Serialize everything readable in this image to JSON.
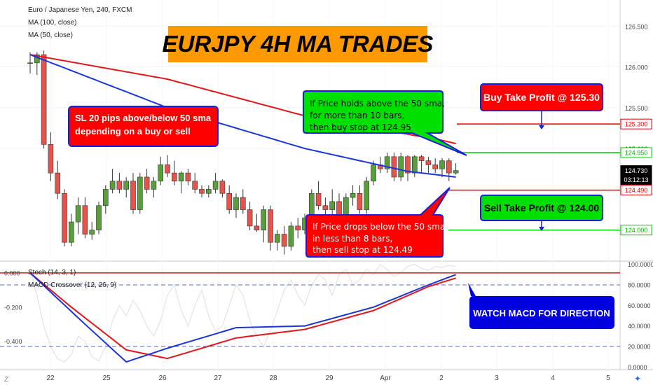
{
  "header": {
    "symbol_line": "Euro / Japanese Yen, 240, FXCM",
    "ma100_label": "MA (100, close)",
    "ma50_label": "MA (50, close)"
  },
  "banner": {
    "text": "EURJPY 4H MA TRADES",
    "bg": "#ff9900",
    "fg": "#000000"
  },
  "callouts": {
    "sl_note": [
      "SL 20 pips above/below 50 sma",
      "depending on a buy or sell"
    ],
    "buy_note": [
      "If Price holds above the 50 sma,",
      "for more than 10 bars,",
      "then buy stop at 124.95"
    ],
    "sell_note": [
      "If Price drops below the 50 sma,",
      "in less than 8 bars,",
      "then sell stop at 124.49"
    ],
    "buy_tp": "Buy Take Profit @ 125.30",
    "sell_tp": "Sell Take Profit @ 124.00",
    "watch_macd": "WATCH MACD FOR DIRECTION"
  },
  "price_axis": {
    "ticks": [
      "126.500",
      "126.000",
      "125.500",
      "125.000"
    ],
    "markers": [
      {
        "label": "125.300",
        "value": 125.3,
        "bg": "#ffffff",
        "fg": "#e50000",
        "border": "#e50000"
      },
      {
        "label": "124.950",
        "value": 124.95,
        "bg": "#ffffff",
        "fg": "#00b000",
        "border": "#00cc00"
      },
      {
        "label": "124.730",
        "value": 124.73,
        "bg": "#000000",
        "fg": "#ffffff",
        "border": "#000000"
      },
      {
        "label": "03:12:13",
        "value": 124.62,
        "bg": "#000000",
        "fg": "#ffffff",
        "border": "#000000"
      },
      {
        "label": "124.490",
        "value": 124.49,
        "bg": "#ffffff",
        "fg": "#e50000",
        "border": "#e50000"
      },
      {
        "label": "124.000",
        "value": 124.0,
        "bg": "#ffffff",
        "fg": "#00b000",
        "border": "#00cc00"
      }
    ]
  },
  "indicator": {
    "stoch_label": "Stoch (14, 3, 1)",
    "macd_label": "MACD Crossover (12, 26, 9)",
    "left_ticks": [
      "0.000",
      "-0.200",
      "-0.400"
    ],
    "right_ticks": [
      "100.0000",
      "80.0000",
      "60.0000",
      "40.0000",
      "20.0000",
      "0.0000"
    ]
  },
  "x_axis": {
    "labels": [
      "22",
      "25",
      "26",
      "27",
      "28",
      "29",
      "Apr",
      "2",
      "3",
      "4",
      "5"
    ]
  },
  "colors": {
    "up": "#5a9e3c",
    "down": "#e5534b",
    "ma100": "#e0161b",
    "ma50": "#1a36d6",
    "buy_line": "#00cc00",
    "sell_line": "#e50000",
    "banner_bg": "#ff9900",
    "callout_red": "#ff0000",
    "callout_green": "#00e000",
    "callout_blue": "#0000e0"
  },
  "chart_data": {
    "type": "candlestick",
    "y_range": [
      123.62,
      126.82
    ],
    "x_dates": [
      "22",
      "25",
      "26",
      "27",
      "28",
      "29",
      "Apr",
      "2",
      "3",
      "4",
      "5"
    ],
    "candles": [
      [
        126.05,
        126.18,
        125.92,
        126.05
      ],
      [
        126.05,
        126.18,
        125.9,
        126.15
      ],
      [
        126.15,
        126.2,
        125.0,
        125.05
      ],
      [
        125.05,
        125.2,
        124.6,
        124.7
      ],
      [
        124.7,
        124.85,
        124.38,
        124.45
      ],
      [
        124.45,
        124.5,
        123.8,
        123.85
      ],
      [
        123.85,
        124.2,
        123.8,
        124.1
      ],
      [
        124.1,
        124.4,
        123.95,
        124.3
      ],
      [
        124.3,
        124.4,
        123.9,
        123.95
      ],
      [
        123.95,
        124.1,
        123.88,
        124.0
      ],
      [
        124.0,
        124.35,
        123.95,
        124.3
      ],
      [
        124.3,
        124.55,
        124.2,
        124.5
      ],
      [
        124.5,
        124.75,
        124.45,
        124.6
      ],
      [
        124.6,
        124.7,
        124.45,
        124.5
      ],
      [
        124.5,
        124.65,
        124.4,
        124.6
      ],
      [
        124.6,
        124.7,
        124.2,
        124.25
      ],
      [
        124.25,
        124.7,
        124.2,
        124.65
      ],
      [
        124.65,
        124.75,
        124.45,
        124.5
      ],
      [
        124.5,
        124.65,
        124.4,
        124.6
      ],
      [
        124.6,
        124.9,
        124.55,
        124.8
      ],
      [
        124.8,
        124.92,
        124.65,
        124.7
      ],
      [
        124.7,
        124.85,
        124.55,
        124.6
      ],
      [
        124.6,
        124.72,
        124.45,
        124.7
      ],
      [
        124.7,
        124.75,
        124.55,
        124.6
      ],
      [
        124.6,
        124.7,
        124.45,
        124.5
      ],
      [
        124.5,
        124.55,
        124.4,
        124.45
      ],
      [
        124.45,
        124.55,
        124.4,
        124.5
      ],
      [
        124.5,
        124.7,
        124.45,
        124.6
      ],
      [
        124.6,
        124.62,
        124.4,
        124.45
      ],
      [
        124.45,
        124.55,
        124.2,
        124.25
      ],
      [
        124.25,
        124.45,
        124.15,
        124.4
      ],
      [
        124.4,
        124.5,
        124.2,
        124.25
      ],
      [
        124.25,
        124.35,
        124.0,
        124.05
      ],
      [
        124.05,
        124.2,
        123.98,
        124.0
      ],
      [
        124.0,
        124.3,
        123.85,
        124.25
      ],
      [
        124.25,
        124.3,
        123.75,
        123.85
      ],
      [
        123.85,
        124.0,
        123.75,
        123.95
      ],
      [
        123.95,
        124.05,
        123.7,
        123.8
      ],
      [
        123.8,
        124.1,
        123.75,
        124.05
      ],
      [
        124.05,
        124.15,
        123.9,
        124.0
      ],
      [
        124.0,
        124.2,
        123.95,
        124.15
      ],
      [
        124.15,
        124.5,
        124.1,
        124.45
      ],
      [
        124.45,
        124.6,
        124.25,
        124.3
      ],
      [
        124.3,
        124.4,
        124.15,
        124.25
      ],
      [
        124.25,
        124.5,
        124.1,
        124.35
      ],
      [
        124.35,
        124.45,
        124.1,
        124.15
      ],
      [
        124.15,
        124.45,
        124.1,
        124.4
      ],
      [
        124.4,
        124.55,
        124.3,
        124.45
      ],
      [
        124.45,
        124.55,
        124.2,
        124.25
      ],
      [
        124.25,
        124.65,
        124.2,
        124.6
      ],
      [
        124.6,
        124.85,
        124.55,
        124.8
      ],
      [
        124.8,
        124.9,
        124.7,
        124.75
      ],
      [
        124.75,
        124.95,
        124.7,
        124.9
      ],
      [
        124.9,
        124.95,
        124.6,
        124.65
      ],
      [
        124.65,
        124.95,
        124.6,
        124.9
      ],
      [
        124.9,
        124.92,
        124.6,
        124.7
      ],
      [
        124.7,
        124.92,
        124.65,
        124.9
      ],
      [
        124.9,
        124.92,
        124.7,
        124.85
      ],
      [
        124.85,
        124.9,
        124.7,
        124.8
      ],
      [
        124.8,
        124.88,
        124.7,
        124.75
      ],
      [
        124.75,
        124.88,
        124.65,
        124.85
      ],
      [
        124.85,
        124.88,
        124.6,
        124.7
      ],
      [
        124.7,
        124.82,
        124.68,
        124.73
      ]
    ],
    "ma100": [
      [
        0,
        126.15
      ],
      [
        20,
        125.85
      ],
      [
        40,
        125.4
      ],
      [
        60,
        125.1
      ],
      [
        62,
        125.06
      ]
    ],
    "ma50": [
      [
        0,
        126.15
      ],
      [
        20,
        125.5
      ],
      [
        40,
        125.0
      ],
      [
        55,
        124.72
      ],
      [
        62,
        124.65
      ]
    ],
    "macd": [
      [
        0,
        0.0
      ],
      [
        8,
        -0.3
      ],
      [
        14,
        -0.52
      ],
      [
        20,
        -0.44
      ],
      [
        30,
        -0.32
      ],
      [
        40,
        -0.31
      ],
      [
        50,
        -0.2
      ],
      [
        58,
        -0.07
      ],
      [
        62,
        -0.01
      ]
    ],
    "signal": [
      [
        0,
        0.0
      ],
      [
        6,
        -0.2
      ],
      [
        14,
        -0.45
      ],
      [
        20,
        -0.5
      ],
      [
        30,
        -0.38
      ],
      [
        40,
        -0.33
      ],
      [
        50,
        -0.22
      ],
      [
        58,
        -0.08
      ],
      [
        62,
        -0.03
      ]
    ],
    "left_range": [
      -0.565,
      0.065
    ],
    "stoch_range": [
      0,
      100
    ]
  }
}
